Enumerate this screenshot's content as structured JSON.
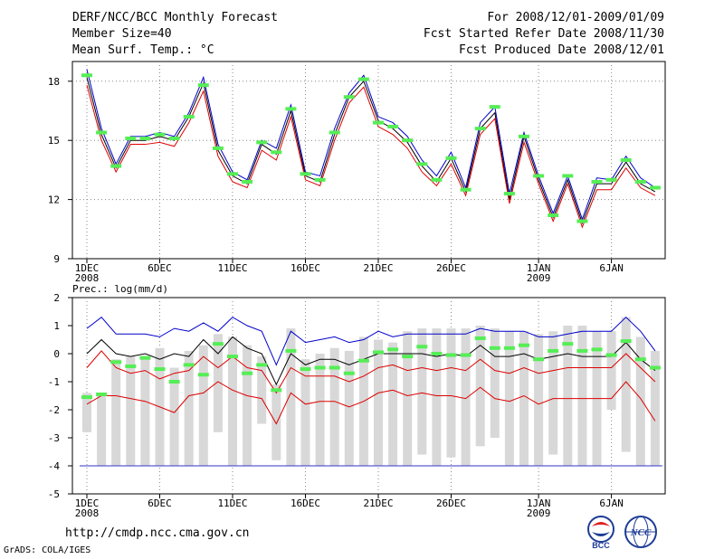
{
  "header": {
    "left": [
      "DERF/NCC/BCC Monthly Forecast",
      "Member Size=40",
      "Mean Surf. Temp.: °C"
    ],
    "right": [
      "For 2008/12/01-2009/01/09",
      "Fcst Started Refer Date 2008/11/30",
      "Fcst Produced Date 2008/12/01"
    ]
  },
  "footer": {
    "url": "http://cmdp.ncc.cma.gov.cn",
    "credit": "GrADS: COLA/IGES",
    "logo_left": "BCC",
    "logo_right": "NCC"
  },
  "colors": {
    "observed": "#55ee55",
    "upper": "#0000cc",
    "mean": "#000000",
    "lower": "#dd0000",
    "spread": "#d8d8d8",
    "grid": "#888888",
    "floor": "#3333cc"
  },
  "chart_data": [
    {
      "type": "line",
      "title": "Mean Surf. Temp.: °C",
      "xlabel": "",
      "ylabel": "°C",
      "ylim": [
        9,
        19
      ],
      "yticks": [
        9,
        12,
        15,
        18
      ],
      "xticks": [
        {
          "day": 1,
          "label": "1DEC",
          "sub": "2008"
        },
        {
          "day": 6,
          "label": "6DEC",
          "sub": ""
        },
        {
          "day": 11,
          "label": "11DEC",
          "sub": ""
        },
        {
          "day": 16,
          "label": "16DEC",
          "sub": ""
        },
        {
          "day": 21,
          "label": "21DEC",
          "sub": ""
        },
        {
          "day": 26,
          "label": "26DEC",
          "sub": ""
        },
        {
          "day": 32,
          "label": "1JAN",
          "sub": "2009"
        },
        {
          "day": 37,
          "label": "6JAN",
          "sub": ""
        }
      ],
      "x": [
        1,
        2,
        3,
        4,
        5,
        6,
        7,
        8,
        9,
        10,
        11,
        12,
        13,
        14,
        15,
        16,
        17,
        18,
        19,
        20,
        21,
        22,
        23,
        24,
        25,
        26,
        27,
        28,
        29,
        30,
        31,
        32,
        33,
        34,
        35,
        36,
        37,
        38,
        39,
        40
      ],
      "series": [
        {
          "name": "upper",
          "values": [
            18.6,
            15.6,
            13.8,
            15.2,
            15.2,
            15.4,
            15.2,
            16.4,
            18.2,
            14.8,
            13.4,
            13.0,
            15.0,
            14.6,
            16.8,
            13.4,
            13.2,
            15.6,
            17.4,
            18.3,
            16.2,
            15.9,
            15.2,
            14.0,
            13.2,
            14.4,
            12.6,
            15.9,
            16.7,
            12.3,
            15.4,
            13.2,
            11.3,
            13.2,
            11.0,
            13.1,
            13.0,
            14.2,
            13.1,
            12.6
          ]
        },
        {
          "name": "mean",
          "values": [
            18.2,
            15.3,
            13.6,
            15.0,
            15.0,
            15.2,
            15.0,
            16.2,
            17.9,
            14.5,
            13.2,
            12.8,
            14.8,
            14.3,
            16.5,
            13.2,
            12.9,
            15.3,
            17.2,
            18.0,
            16.0,
            15.6,
            14.9,
            13.7,
            12.9,
            14.1,
            12.4,
            15.6,
            16.4,
            12.0,
            15.2,
            13.0,
            11.1,
            13.0,
            10.8,
            12.8,
            12.8,
            13.9,
            12.8,
            12.4
          ]
        },
        {
          "name": "lower",
          "values": [
            17.8,
            15.0,
            13.4,
            14.8,
            14.8,
            14.9,
            14.7,
            15.9,
            17.5,
            14.2,
            12.9,
            12.6,
            14.5,
            14.0,
            16.2,
            13.0,
            12.7,
            15.0,
            16.9,
            17.7,
            15.7,
            15.3,
            14.6,
            13.4,
            12.7,
            13.8,
            12.2,
            15.3,
            16.1,
            11.8,
            14.9,
            12.8,
            10.9,
            12.8,
            10.6,
            12.5,
            12.5,
            13.6,
            12.6,
            12.2
          ]
        },
        {
          "name": "observed",
          "values": [
            18.3,
            15.4,
            13.7,
            15.1,
            15.1,
            15.3,
            15.1,
            16.2,
            17.8,
            14.6,
            13.3,
            12.9,
            14.9,
            14.4,
            16.6,
            13.3,
            13.0,
            15.4,
            17.2,
            18.1,
            15.9,
            15.7,
            15.0,
            13.8,
            13.0,
            14.1,
            12.5,
            15.6,
            16.7,
            12.3,
            15.2,
            13.2,
            11.2,
            13.2,
            10.9,
            12.9,
            13.0,
            14.0,
            12.9,
            12.6
          ]
        }
      ]
    },
    {
      "type": "line",
      "title": "Prec.: log(mm/d)",
      "xlabel": "",
      "ylabel": "log(mm/d)",
      "ylim": [
        -5,
        2
      ],
      "yticks": [
        -5,
        -4,
        -3,
        -2,
        -1,
        0,
        1,
        2
      ],
      "floor": -4,
      "xticks": [
        {
          "day": 1,
          "label": "1DEC",
          "sub": "2008"
        },
        {
          "day": 6,
          "label": "6DEC",
          "sub": ""
        },
        {
          "day": 11,
          "label": "11DEC",
          "sub": ""
        },
        {
          "day": 16,
          "label": "16DEC",
          "sub": ""
        },
        {
          "day": 21,
          "label": "21DEC",
          "sub": ""
        },
        {
          "day": 26,
          "label": "26DEC",
          "sub": ""
        },
        {
          "day": 32,
          "label": "1JAN",
          "sub": "2009"
        },
        {
          "day": 37,
          "label": "6JAN",
          "sub": ""
        }
      ],
      "x": [
        1,
        2,
        3,
        4,
        5,
        6,
        7,
        8,
        9,
        10,
        11,
        12,
        13,
        14,
        15,
        16,
        17,
        18,
        19,
        20,
        21,
        22,
        23,
        24,
        25,
        26,
        27,
        28,
        29,
        30,
        31,
        32,
        33,
        34,
        35,
        36,
        37,
        38,
        39,
        40
      ],
      "spread_bars": [
        [
          -2.8,
          -1.4
        ],
        [
          -4.0,
          -1.4
        ],
        [
          -4.0,
          -0.2
        ],
        [
          -4.0,
          -0.1
        ],
        [
          -4.0,
          -0.1
        ],
        [
          -4.0,
          0.2
        ],
        [
          -4.0,
          -0.5
        ],
        [
          -4.0,
          0.1
        ],
        [
          -4.0,
          0.3
        ],
        [
          -2.8,
          0.7
        ],
        [
          -4.0,
          0.6
        ],
        [
          -4.0,
          0.3
        ],
        [
          -2.5,
          -0.1
        ],
        [
          -3.8,
          -1.1
        ],
        [
          -4.0,
          0.9
        ],
        [
          -4.0,
          -0.2
        ],
        [
          -4.0,
          0.0
        ],
        [
          -4.0,
          0.2
        ],
        [
          -4.0,
          0.1
        ],
        [
          -4.0,
          0.6
        ],
        [
          -4.0,
          0.5
        ],
        [
          -4.0,
          0.4
        ],
        [
          -4.0,
          0.8
        ],
        [
          -3.6,
          0.9
        ],
        [
          -4.0,
          0.9
        ],
        [
          -3.7,
          0.9
        ],
        [
          -4.0,
          0.9
        ],
        [
          -3.3,
          1.0
        ],
        [
          -3.0,
          0.9
        ],
        [
          -4.0,
          0.8
        ],
        [
          -4.0,
          0.8
        ],
        [
          -4.0,
          0.7
        ],
        [
          -3.6,
          0.8
        ],
        [
          -4.0,
          1.0
        ],
        [
          -4.0,
          1.0
        ],
        [
          -4.0,
          0.8
        ],
        [
          -2.0,
          0.8
        ],
        [
          -3.5,
          1.3
        ],
        [
          -4.0,
          0.6
        ],
        [
          -4.0,
          0.1
        ]
      ],
      "series": [
        {
          "name": "upper",
          "values": [
            0.9,
            1.3,
            0.7,
            0.7,
            0.7,
            0.6,
            0.9,
            0.8,
            1.1,
            0.8,
            1.3,
            1.0,
            0.8,
            -0.4,
            0.8,
            0.4,
            0.5,
            0.6,
            0.4,
            0.5,
            0.8,
            0.6,
            0.7,
            0.7,
            0.7,
            0.7,
            0.7,
            0.9,
            0.8,
            0.8,
            0.8,
            0.6,
            0.6,
            0.7,
            0.8,
            0.8,
            0.8,
            1.3,
            0.8,
            0.1
          ]
        },
        {
          "name": "mean",
          "values": [
            0.0,
            0.5,
            0.0,
            -0.1,
            0.0,
            -0.2,
            0.0,
            -0.1,
            0.5,
            0.0,
            0.6,
            0.2,
            0.0,
            -1.1,
            0.0,
            -0.4,
            -0.2,
            -0.2,
            -0.4,
            -0.2,
            0.0,
            0.0,
            0.0,
            0.0,
            -0.1,
            0.0,
            -0.1,
            0.3,
            -0.1,
            -0.1,
            0.0,
            -0.2,
            -0.1,
            0.0,
            -0.1,
            -0.1,
            -0.1,
            0.4,
            -0.2,
            -0.6
          ]
        },
        {
          "name": "lower1",
          "values": [
            -0.5,
            0.1,
            -0.5,
            -0.7,
            -0.6,
            -0.9,
            -0.7,
            -0.6,
            -0.1,
            -0.5,
            -0.1,
            -0.5,
            -0.6,
            -1.4,
            -0.5,
            -0.8,
            -0.8,
            -0.8,
            -1.0,
            -0.8,
            -0.5,
            -0.4,
            -0.6,
            -0.5,
            -0.6,
            -0.5,
            -0.6,
            -0.2,
            -0.6,
            -0.7,
            -0.5,
            -0.7,
            -0.6,
            -0.5,
            -0.5,
            -0.5,
            -0.5,
            0.0,
            -0.5,
            -1.0
          ]
        },
        {
          "name": "lower2",
          "values": [
            -1.8,
            -1.5,
            -1.5,
            -1.6,
            -1.7,
            -1.9,
            -2.1,
            -1.5,
            -1.4,
            -1.0,
            -1.3,
            -1.5,
            -1.6,
            -2.5,
            -1.4,
            -1.8,
            -1.7,
            -1.7,
            -1.9,
            -1.7,
            -1.4,
            -1.3,
            -1.5,
            -1.4,
            -1.5,
            -1.5,
            -1.6,
            -1.2,
            -1.6,
            -1.7,
            -1.5,
            -1.8,
            -1.6,
            -1.6,
            -1.6,
            -1.6,
            -1.6,
            -1.0,
            -1.6,
            -2.4
          ]
        },
        {
          "name": "observed",
          "values": [
            -1.55,
            -1.45,
            -0.3,
            -0.45,
            -0.15,
            -0.55,
            -1.0,
            -0.4,
            -0.75,
            0.35,
            -0.1,
            -0.7,
            -0.4,
            -1.3,
            0.1,
            -0.55,
            -0.5,
            -0.5,
            -0.7,
            -0.25,
            0.05,
            0.15,
            -0.1,
            0.25,
            0.0,
            -0.05,
            -0.05,
            0.55,
            0.2,
            0.2,
            0.3,
            -0.2,
            0.1,
            0.35,
            0.1,
            0.15,
            -0.05,
            0.45,
            -0.2,
            -0.5
          ]
        }
      ]
    }
  ]
}
